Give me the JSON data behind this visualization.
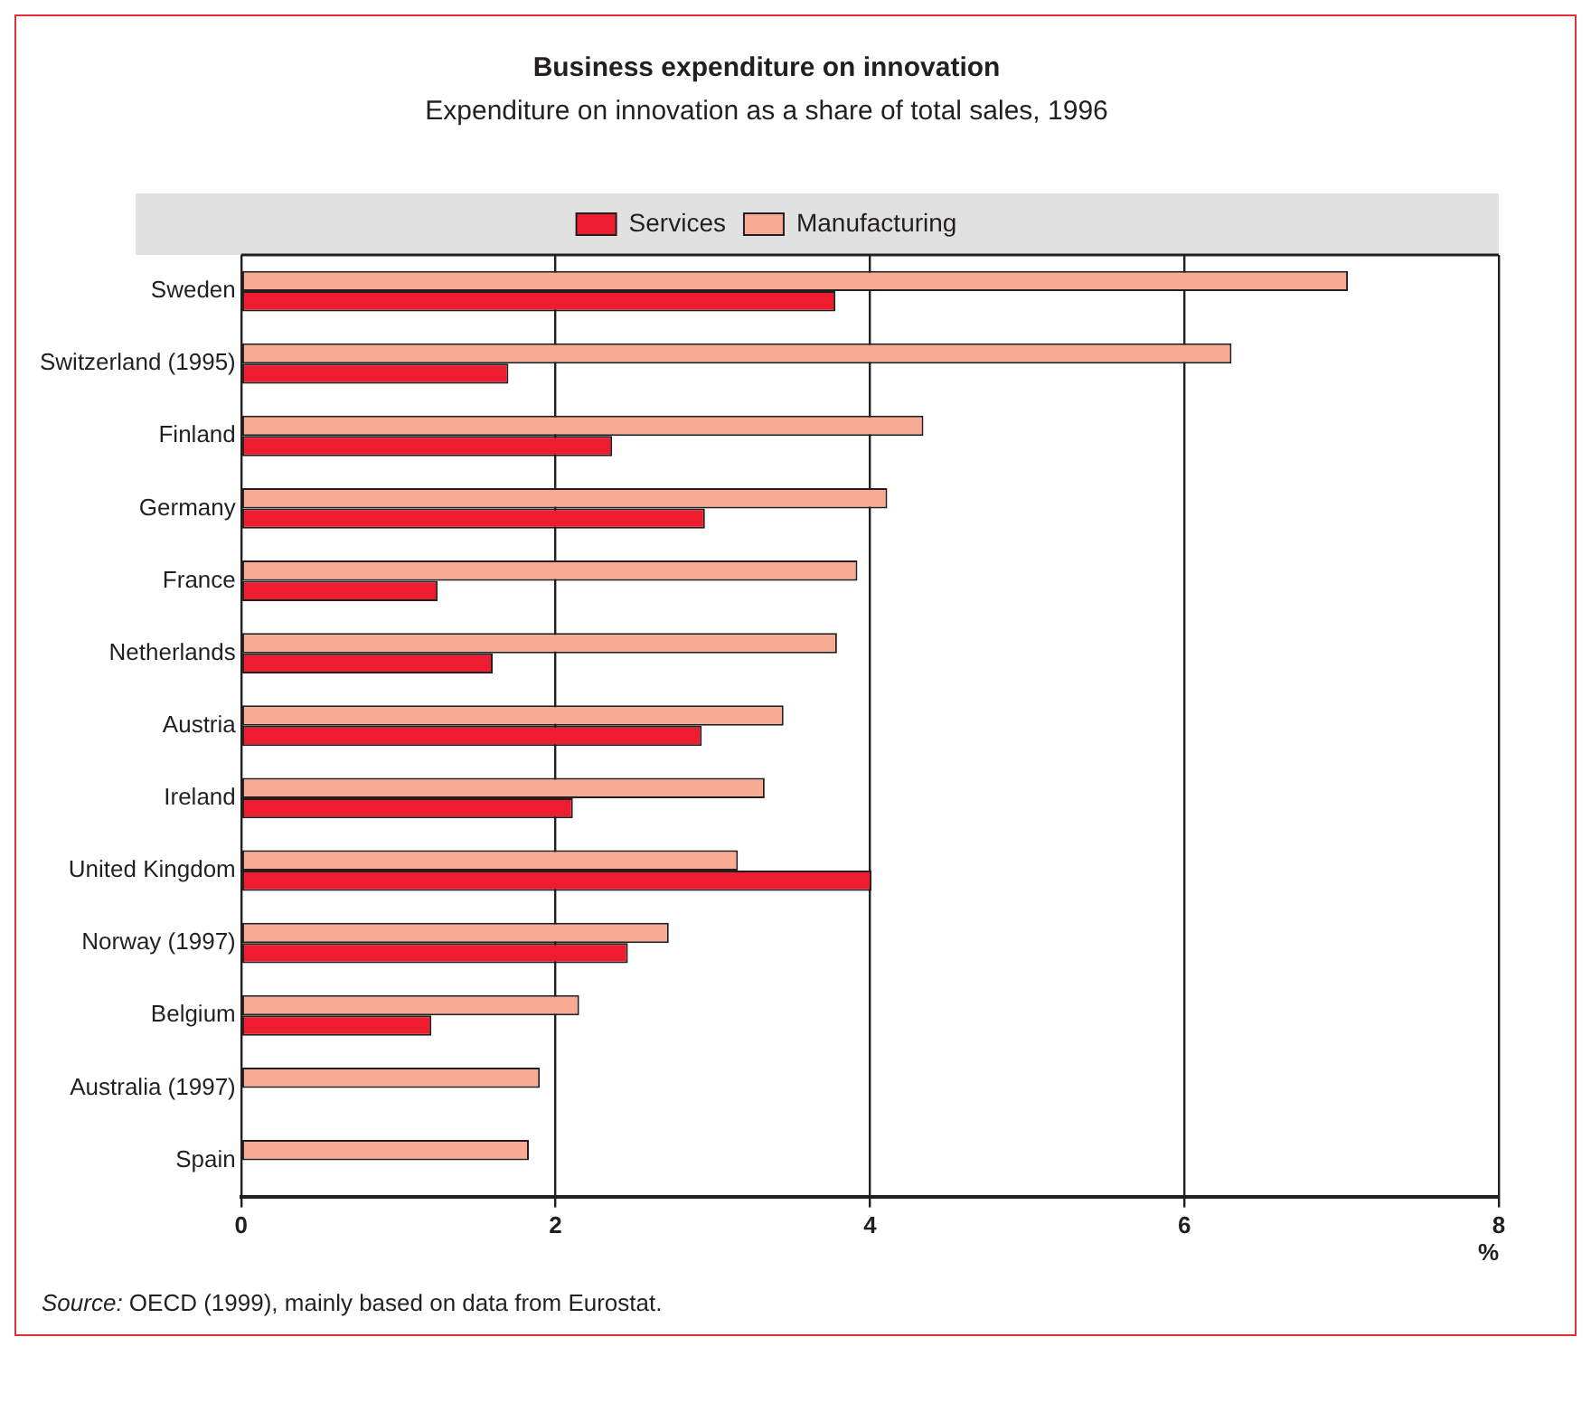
{
  "chart_data": {
    "type": "bar",
    "orientation": "horizontal",
    "title": "Business expenditure on innovation",
    "subtitle": "Expenditure on innovation as a share of total sales, 1996",
    "xlabel": "%",
    "categories": [
      "Sweden",
      "Switzerland (1995)",
      "Finland",
      "Germany",
      "France",
      "Netherlands",
      "Austria",
      "Ireland",
      "United Kingdom",
      "Norway (1997)",
      "Belgium",
      "Australia (1997)",
      "Spain"
    ],
    "series": [
      {
        "name": "Services",
        "color": "#ed1c2e",
        "values": [
          3.78,
          1.7,
          2.36,
          2.95,
          1.25,
          1.6,
          2.93,
          2.11,
          4.01,
          2.46,
          1.21,
          null,
          null
        ]
      },
      {
        "name": "Manufacturing",
        "color": "#f8ab92",
        "values": [
          7.04,
          6.3,
          4.34,
          4.11,
          3.92,
          3.79,
          3.45,
          3.33,
          3.16,
          2.72,
          2.15,
          1.9,
          1.83
        ]
      }
    ],
    "xlim": [
      0,
      8
    ],
    "xticks": [
      0,
      2,
      4,
      6,
      8
    ],
    "grid": "x",
    "legend": "top",
    "annotations": [
      "Source: OECD (1999), mainly based on data from Eurostat."
    ]
  }
}
